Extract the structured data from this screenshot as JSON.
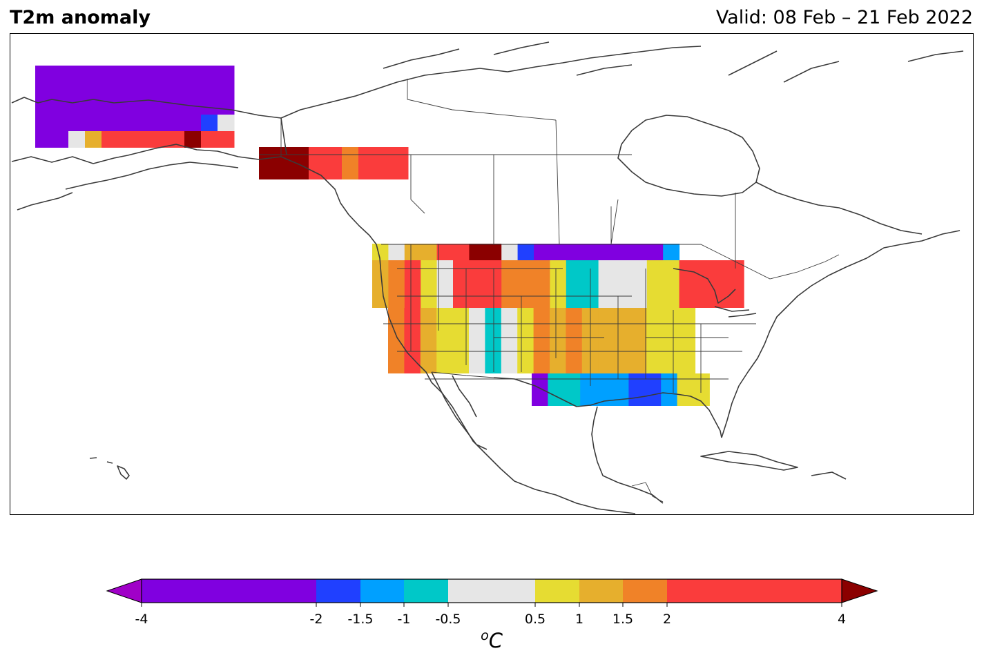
{
  "header": {
    "title": "T2m anomaly",
    "valid": "Valid: 08 Feb – 21 Feb 2022"
  },
  "colorbar": {
    "bins": [
      {
        "from": -4,
        "to": -2,
        "color": "#8000e0"
      },
      {
        "from": -2,
        "to": -1.5,
        "color": "#2040ff"
      },
      {
        "from": -1.5,
        "to": -1,
        "color": "#00a0ff"
      },
      {
        "from": -1,
        "to": -0.5,
        "color": "#00c8c8"
      },
      {
        "from": -0.5,
        "to": 0.5,
        "color": "#e6e6e6"
      },
      {
        "from": 0.5,
        "to": 1,
        "color": "#e6dc32"
      },
      {
        "from": 1,
        "to": 1.5,
        "color": "#e6af2d"
      },
      {
        "from": 1.5,
        "to": 2,
        "color": "#f08228"
      },
      {
        "from": 2,
        "to": 4,
        "color": "#fa3c3c"
      }
    ],
    "under_color": "#a000c8",
    "over_color": "#8b0000",
    "tick_labels": [
      "-4",
      "-2",
      "-1.5",
      "-1",
      "-0.5",
      "0.5",
      "1",
      "1.5",
      "2",
      "4"
    ],
    "unit_base": "o",
    "unit_sup": "C"
  },
  "map": {
    "region": "North America",
    "layers": [
      "coastlines",
      "country borders",
      "state borders"
    ],
    "anomaly_grid_rows": [
      {
        "region": "Alaska north",
        "values": [
          -3,
          -3,
          -3,
          -3,
          -3,
          -3,
          -3,
          -3,
          -3,
          -3,
          -3,
          -3
        ]
      },
      {
        "region": "Alaska south",
        "values": [
          -3,
          -3,
          -3,
          -3,
          -3,
          -3,
          -3,
          -3,
          -2.5,
          -2.5,
          -1.8,
          0
        ]
      },
      {
        "region": "Alaska coast",
        "values": [
          -3,
          -2.5,
          0,
          1.2,
          3,
          3,
          3,
          3,
          3,
          5,
          3,
          3
        ]
      },
      {
        "region": "Southeast Alaska",
        "values": [
          5,
          5,
          5,
          3,
          3,
          1.8,
          3,
          3,
          3
        ]
      },
      {
        "region": "US northern tier",
        "values": [
          0.7,
          0,
          1.2,
          1.2,
          3,
          3,
          5,
          5,
          0,
          -1.7,
          -3,
          -3,
          -3,
          -3,
          -3,
          -3,
          -3,
          -3,
          -1.2
        ]
      },
      {
        "region": "US central",
        "values": [
          1.2,
          1.8,
          3,
          0.7,
          0,
          3,
          3,
          3,
          1.8,
          1.8,
          1.8,
          0.7,
          -0.7,
          -0.7,
          0,
          0,
          0,
          0.7,
          0.7,
          3,
          3,
          3,
          3
        ]
      },
      {
        "region": "US south",
        "values": [
          1.8,
          3,
          1.2,
          0.7,
          0.7,
          0,
          -0.7,
          0,
          0.7,
          1.8,
          1.2,
          1.8,
          1.2,
          1.2,
          1.2,
          1.2,
          0.7,
          0.7,
          0.7
        ]
      },
      {
        "region": "Gulf coast",
        "values": [
          -3,
          -0.7,
          -0.7,
          -1.2,
          -1.2,
          -1.2,
          -1.7,
          -1.7,
          -1.2,
          0.7
        ]
      }
    ]
  }
}
